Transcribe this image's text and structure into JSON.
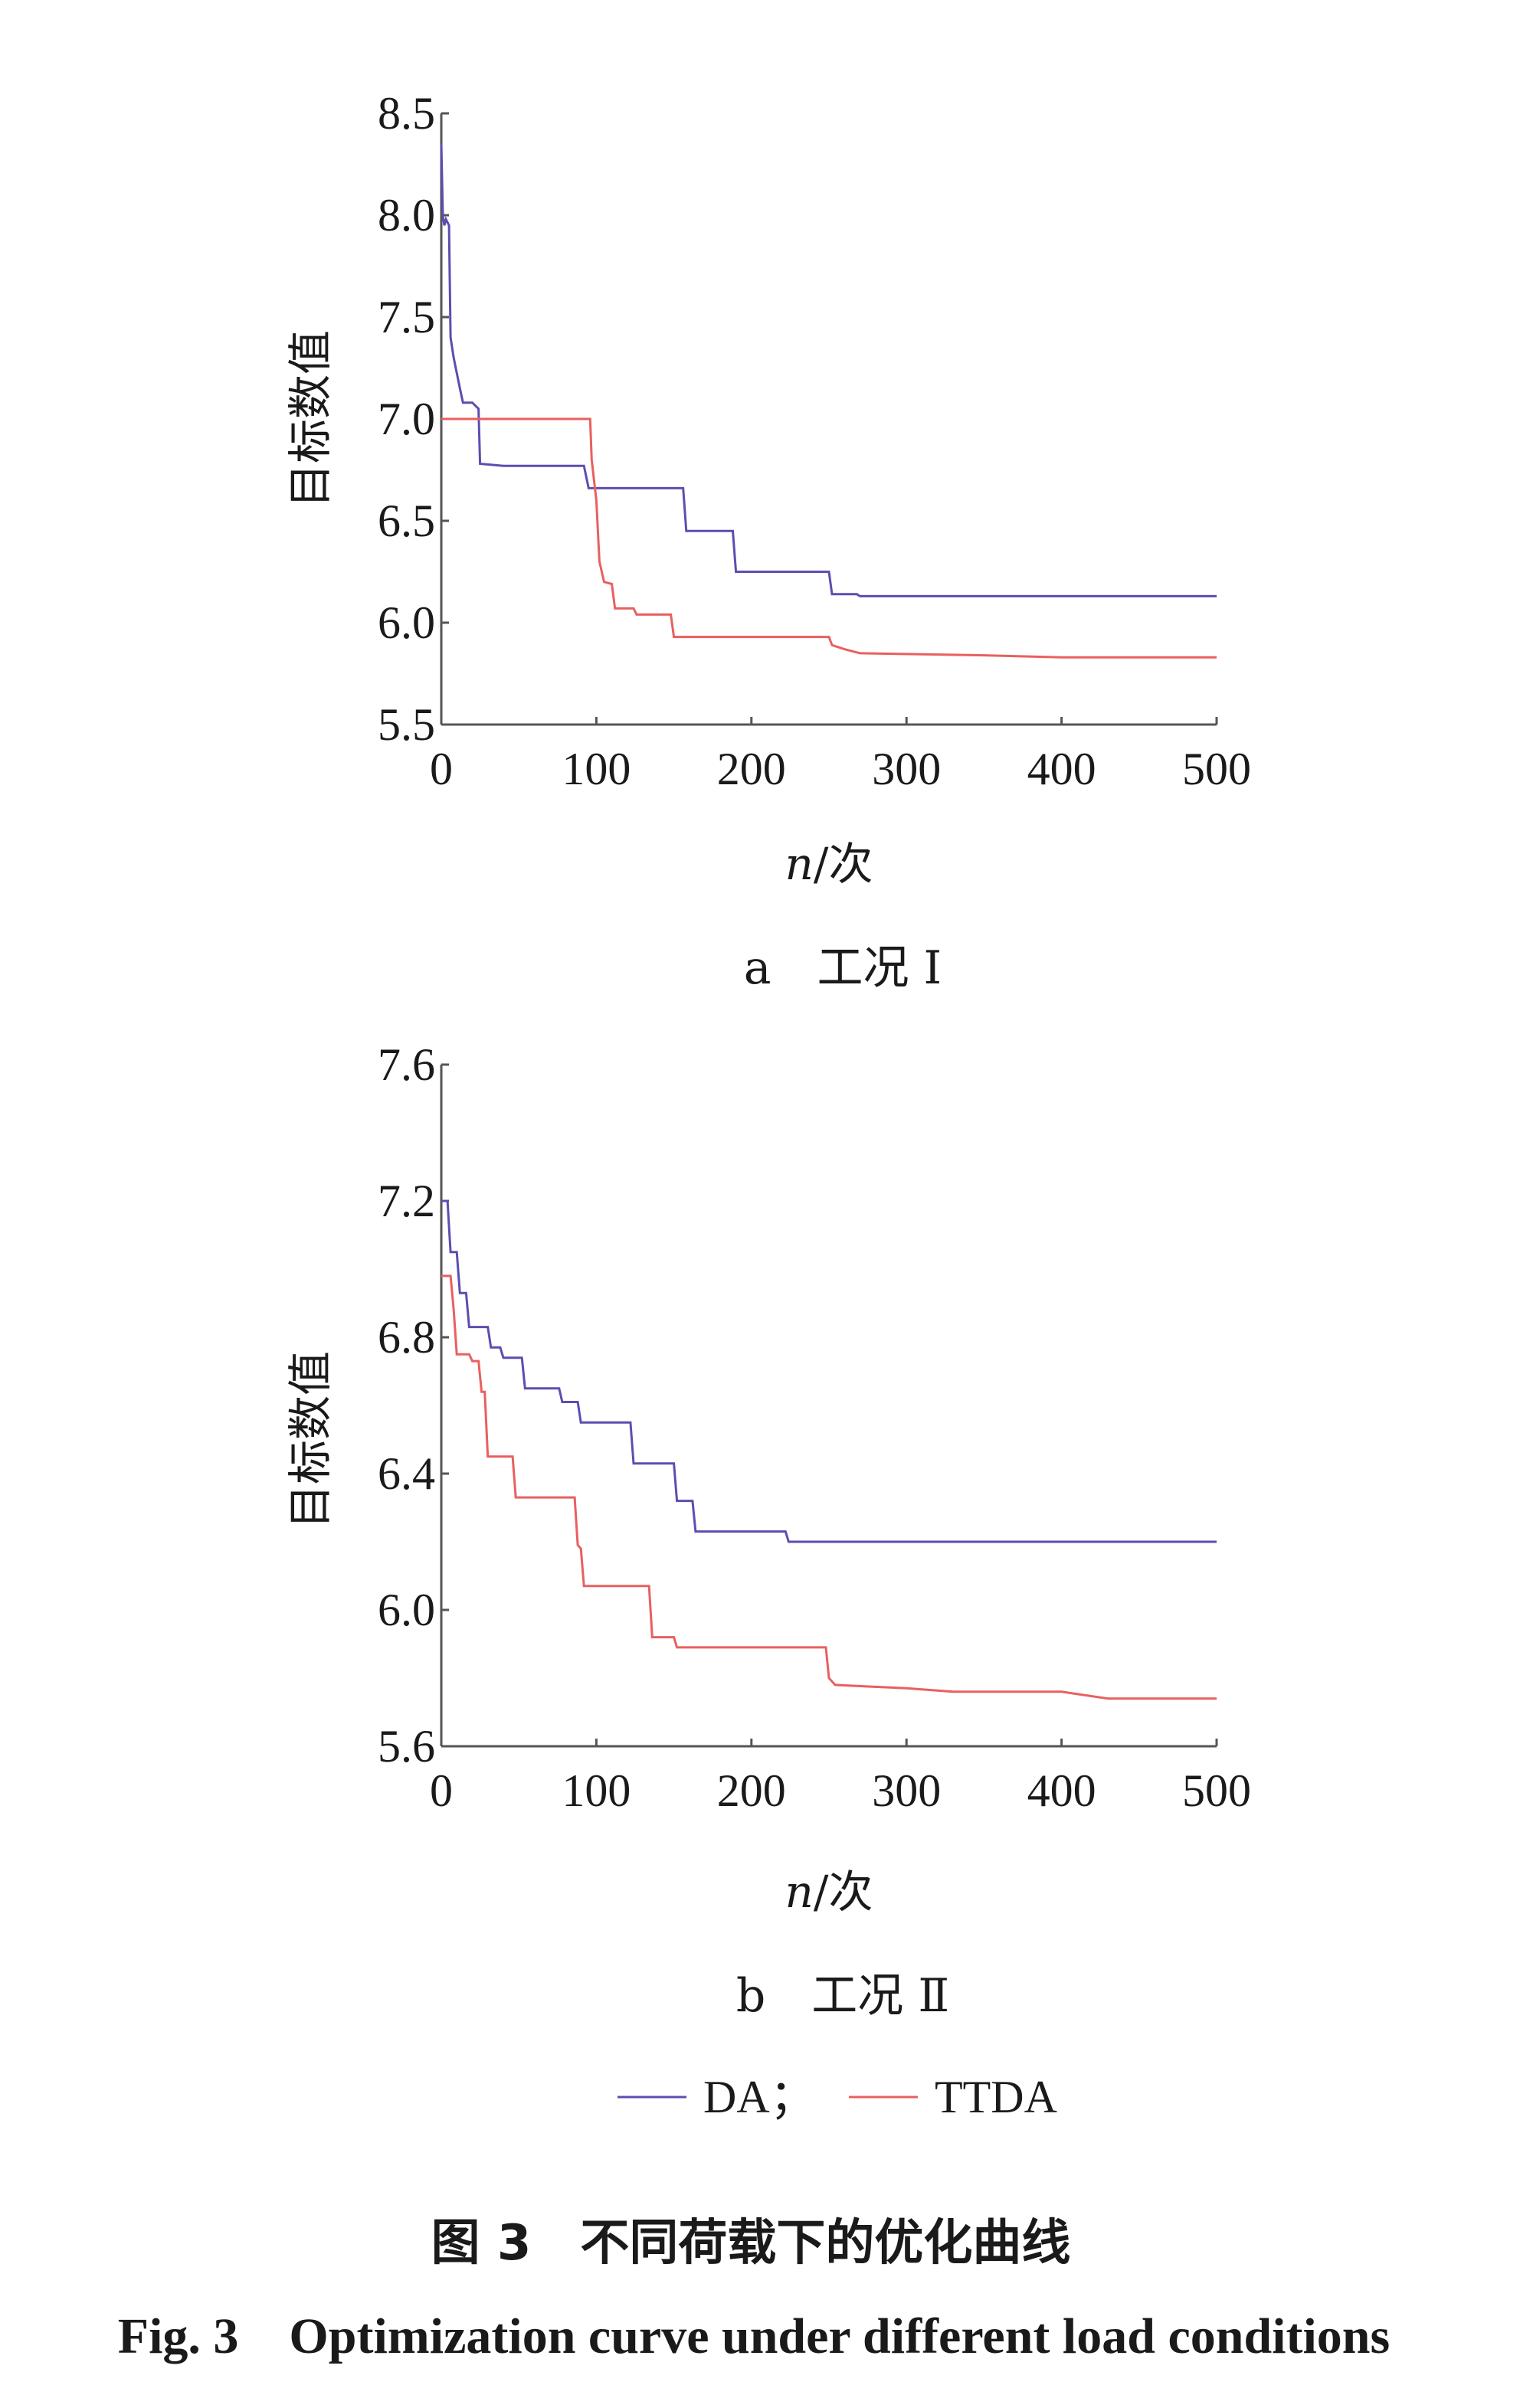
{
  "chart_data": [
    {
      "type": "line",
      "ylabel": "目标数值",
      "xlabel_italic": "n",
      "xlabel_rest": "/次",
      "subcaption": "a　工况 Ⅰ",
      "xlim": [
        0,
        500
      ],
      "ylim": [
        5.5,
        8.5
      ],
      "xticks": [
        0,
        100,
        200,
        300,
        400,
        500
      ],
      "yticks": [
        5.5,
        6.0,
        6.5,
        7.0,
        7.5,
        8.0,
        8.5
      ],
      "xtick_labels": [
        "0",
        "100",
        "200",
        "300",
        "400",
        "500"
      ],
      "ytick_labels": [
        "5.5",
        "6.0",
        "6.5",
        "7.0",
        "7.5",
        "8.0",
        "8.5"
      ],
      "grid": false,
      "series": [
        {
          "name": "DA",
          "color": "#5a4fb0",
          "points": [
            [
              0,
              8.35
            ],
            [
              1,
              8.0
            ],
            [
              2,
              7.95
            ],
            [
              3,
              7.98
            ],
            [
              5,
              7.95
            ],
            [
              6,
              7.4
            ],
            [
              8,
              7.3
            ],
            [
              12,
              7.15
            ],
            [
              14,
              7.08
            ],
            [
              20,
              7.08
            ],
            [
              24,
              7.05
            ],
            [
              25,
              6.78
            ],
            [
              40,
              6.77
            ],
            [
              92,
              6.77
            ],
            [
              95,
              6.66
            ],
            [
              156,
              6.66
            ],
            [
              158,
              6.45
            ],
            [
              188,
              6.45
            ],
            [
              190,
              6.25
            ],
            [
              250,
              6.25
            ],
            [
              252,
              6.14
            ],
            [
              268,
              6.14
            ],
            [
              270,
              6.13
            ],
            [
              500,
              6.13
            ]
          ]
        },
        {
          "name": "TTDA",
          "color": "#e8605f",
          "points": [
            [
              0,
              7.0
            ],
            [
              96,
              7.0
            ],
            [
              97,
              6.8
            ],
            [
              100,
              6.6
            ],
            [
              102,
              6.3
            ],
            [
              105,
              6.2
            ],
            [
              110,
              6.19
            ],
            [
              112,
              6.07
            ],
            [
              124,
              6.07
            ],
            [
              126,
              6.04
            ],
            [
              143,
              6.04
            ],
            [
              148,
              6.04
            ],
            [
              150,
              5.93
            ],
            [
              250,
              5.93
            ],
            [
              252,
              5.89
            ],
            [
              260,
              5.87
            ],
            [
              270,
              5.85
            ],
            [
              350,
              5.84
            ],
            [
              400,
              5.83
            ],
            [
              500,
              5.83
            ]
          ]
        }
      ]
    },
    {
      "type": "line",
      "ylabel": "目标数值",
      "xlabel_italic": "n",
      "xlabel_rest": "/次",
      "subcaption": "b　工况 Ⅱ",
      "xlim": [
        0,
        500
      ],
      "ylim": [
        5.6,
        7.6
      ],
      "xticks": [
        0,
        100,
        200,
        300,
        400,
        500
      ],
      "yticks": [
        5.6,
        6.0,
        6.4,
        6.8,
        7.2,
        7.6
      ],
      "xtick_labels": [
        "0",
        "100",
        "200",
        "300",
        "400",
        "500"
      ],
      "ytick_labels": [
        "5.6",
        "6.0",
        "6.4",
        "6.8",
        "7.2",
        "7.6"
      ],
      "grid": false,
      "series": [
        {
          "name": "DA",
          "color": "#5a4fb0",
          "points": [
            [
              0,
              7.2
            ],
            [
              4,
              7.2
            ],
            [
              6,
              7.05
            ],
            [
              10,
              7.05
            ],
            [
              12,
              6.93
            ],
            [
              16,
              6.93
            ],
            [
              18,
              6.83
            ],
            [
              30,
              6.83
            ],
            [
              32,
              6.77
            ],
            [
              38,
              6.77
            ],
            [
              40,
              6.74
            ],
            [
              52,
              6.74
            ],
            [
              54,
              6.65
            ],
            [
              76,
              6.65
            ],
            [
              78,
              6.61
            ],
            [
              88,
              6.61
            ],
            [
              90,
              6.55
            ],
            [
              122,
              6.55
            ],
            [
              124,
              6.43
            ],
            [
              150,
              6.43
            ],
            [
              152,
              6.32
            ],
            [
              162,
              6.32
            ],
            [
              164,
              6.23
            ],
            [
              222,
              6.23
            ],
            [
              224,
              6.2
            ],
            [
              500,
              6.2
            ]
          ]
        },
        {
          "name": "TTDA",
          "color": "#e8605f",
          "points": [
            [
              0,
              6.98
            ],
            [
              6,
              6.98
            ],
            [
              8,
              6.88
            ],
            [
              10,
              6.75
            ],
            [
              18,
              6.75
            ],
            [
              20,
              6.73
            ],
            [
              24,
              6.73
            ],
            [
              26,
              6.64
            ],
            [
              28,
              6.64
            ],
            [
              30,
              6.45
            ],
            [
              46,
              6.45
            ],
            [
              48,
              6.33
            ],
            [
              86,
              6.33
            ],
            [
              88,
              6.19
            ],
            [
              90,
              6.18
            ],
            [
              92,
              6.07
            ],
            [
              134,
              6.07
            ],
            [
              136,
              5.92
            ],
            [
              150,
              5.92
            ],
            [
              152,
              5.89
            ],
            [
              248,
              5.89
            ],
            [
              250,
              5.8
            ],
            [
              254,
              5.78
            ],
            [
              300,
              5.77
            ],
            [
              330,
              5.76
            ],
            [
              400,
              5.76
            ],
            [
              430,
              5.74
            ],
            [
              500,
              5.74
            ]
          ]
        }
      ]
    }
  ],
  "legend": {
    "placement": "bottom-center",
    "entries": [
      {
        "label": "DA；",
        "color": "#5a4fb0"
      },
      {
        "label": "TTDA",
        "color": "#e8605f"
      }
    ]
  },
  "caption_cn": "图 3　不同荷载下的优化曲线",
  "caption_en": "Fig. 3　Optimization curve under different load conditions"
}
